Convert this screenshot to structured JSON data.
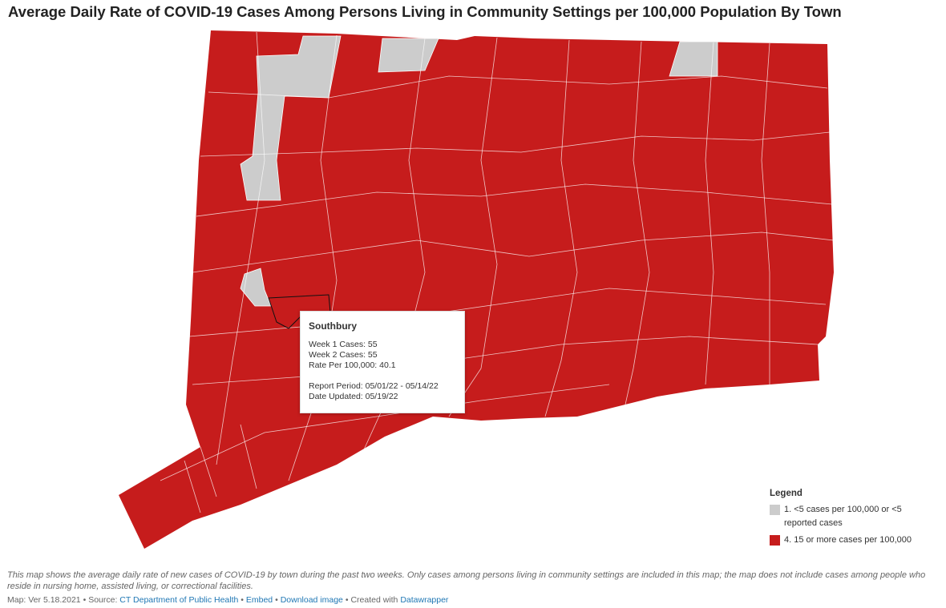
{
  "title": "Average Daily Rate of COVID-19 Cases Among Persons Living in Community Settings per 100,000 Population By Town",
  "tooltip": {
    "town": "Southbury",
    "lines": [
      "Week 1 Cases: 55",
      "Week 2 Cases: 55",
      "Rate Per 100,000: 40.1"
    ],
    "period_lines": [
      "Report Period: 05/01/22 - 05/14/22",
      "Date Updated: 05/19/22"
    ]
  },
  "legend": {
    "title": "Legend",
    "items": [
      {
        "label": "1. <5 cases per 100,000 or <5 reported cases",
        "color": "#cccccc"
      },
      {
        "label": "4. 15 or more cases per 100,000",
        "color": "#c61c1c"
      }
    ]
  },
  "note": "This map shows the average daily rate of new cases of COVID-19 by town during the past two weeks. Only cases among persons living in community settings are included in this map; the map does not include cases among people who reside in nursing home, assisted living, or correctional facilities.",
  "footer": {
    "version": "Map: Ver 5.18.2021",
    "separator": "•",
    "source_label": "Source:",
    "source": "CT Department of Public Health",
    "embed": "Embed",
    "download": "Download image",
    "created_with": "Created with",
    "tool": "Datawrapper"
  }
}
